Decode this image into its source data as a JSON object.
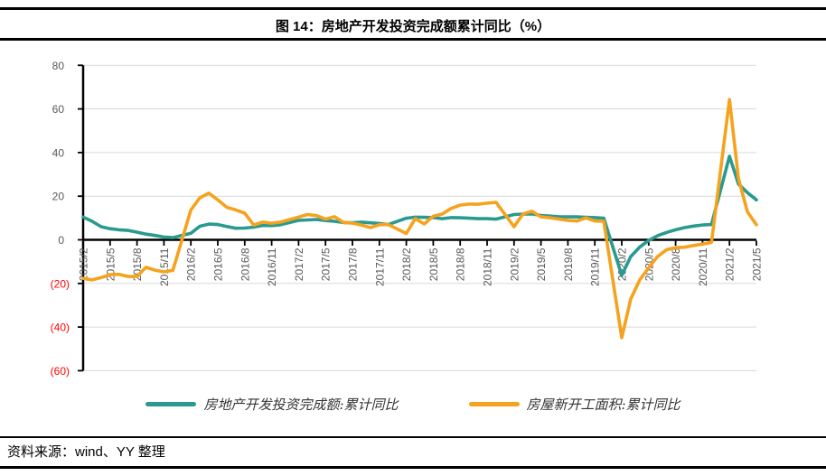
{
  "footer": {
    "source": "资料来源：wind、YY 整理"
  },
  "chart_data": {
    "type": "line",
    "title": "图 14：房地产开发投资完成额累计同比（%）",
    "x_axis": {
      "start": "2015/2",
      "end": "2021/5",
      "tick_labels": [
        "2015/2",
        "2015/5",
        "2015/8",
        "2015/11",
        "2016/2",
        "2016/5",
        "2016/8",
        "2016/11",
        "2017/2",
        "2017/5",
        "2017/8",
        "2017/11",
        "2018/2",
        "2018/5",
        "2018/8",
        "2018/11",
        "2019/2",
        "2019/5",
        "2019/8",
        "2019/11",
        "2020/2",
        "2020/5",
        "2020/8",
        "2020/11",
        "2021/2",
        "2021/5"
      ],
      "label_rotation_deg": 90,
      "label_color": "#595959"
    },
    "y_axis": {
      "ticks": [
        80,
        60,
        40,
        20,
        0,
        -20,
        -40,
        -60
      ],
      "range": [
        -60,
        80
      ],
      "label_color": "#595959",
      "negative_label_color": "#FF0000",
      "negative_format": "(n)"
    },
    "grid": {
      "horizontal": true,
      "color": "#D9D9D9"
    },
    "axis_color": "#000000",
    "legend_position": "bottom",
    "series": [
      {
        "name": "房地产开发投资完成额:累计同比",
        "color": "#2A9A90",
        "points": [
          [
            "2015/2",
            10.4
          ],
          [
            "2015/3",
            8.5
          ],
          [
            "2015/4",
            6.0
          ],
          [
            "2015/5",
            5.1
          ],
          [
            "2015/6",
            4.6
          ],
          [
            "2015/7",
            4.3
          ],
          [
            "2015/8",
            3.5
          ],
          [
            "2015/9",
            2.6
          ],
          [
            "2015/10",
            2.0
          ],
          [
            "2015/11",
            1.3
          ],
          [
            "2015/12",
            1.0
          ],
          [
            "2016/2",
            3.0
          ],
          [
            "2016/3",
            6.2
          ],
          [
            "2016/4",
            7.2
          ],
          [
            "2016/5",
            7.0
          ],
          [
            "2016/6",
            6.1
          ],
          [
            "2016/7",
            5.3
          ],
          [
            "2016/8",
            5.4
          ],
          [
            "2016/9",
            5.8
          ],
          [
            "2016/10",
            6.6
          ],
          [
            "2016/11",
            6.5
          ],
          [
            "2016/12",
            6.9
          ],
          [
            "2017/2",
            8.9
          ],
          [
            "2017/3",
            9.1
          ],
          [
            "2017/4",
            9.3
          ],
          [
            "2017/5",
            8.8
          ],
          [
            "2017/6",
            8.5
          ],
          [
            "2017/7",
            7.9
          ],
          [
            "2017/8",
            7.8
          ],
          [
            "2017/9",
            8.1
          ],
          [
            "2017/10",
            7.8
          ],
          [
            "2017/11",
            7.5
          ],
          [
            "2017/12",
            7.0
          ],
          [
            "2018/2",
            9.9
          ],
          [
            "2018/3",
            10.4
          ],
          [
            "2018/4",
            10.3
          ],
          [
            "2018/5",
            10.2
          ],
          [
            "2018/6",
            9.7
          ],
          [
            "2018/7",
            10.2
          ],
          [
            "2018/8",
            10.1
          ],
          [
            "2018/9",
            9.9
          ],
          [
            "2018/10",
            9.7
          ],
          [
            "2018/11",
            9.7
          ],
          [
            "2018/12",
            9.5
          ],
          [
            "2019/2",
            11.6
          ],
          [
            "2019/3",
            11.8
          ],
          [
            "2019/4",
            11.9
          ],
          [
            "2019/5",
            11.2
          ],
          [
            "2019/6",
            10.9
          ],
          [
            "2019/7",
            10.6
          ],
          [
            "2019/8",
            10.5
          ],
          [
            "2019/9",
            10.5
          ],
          [
            "2019/10",
            10.3
          ],
          [
            "2019/11",
            10.2
          ],
          [
            "2019/12",
            9.9
          ],
          [
            "2020/2",
            -16.3
          ],
          [
            "2020/3",
            -7.7
          ],
          [
            "2020/4",
            -3.3
          ],
          [
            "2020/5",
            -0.3
          ],
          [
            "2020/6",
            1.9
          ],
          [
            "2020/7",
            3.4
          ],
          [
            "2020/8",
            4.6
          ],
          [
            "2020/9",
            5.6
          ],
          [
            "2020/10",
            6.3
          ],
          [
            "2020/11",
            6.8
          ],
          [
            "2020/12",
            7.0
          ],
          [
            "2021/2",
            38.3
          ],
          [
            "2021/3",
            25.6
          ],
          [
            "2021/4",
            21.6
          ],
          [
            "2021/5",
            18.3
          ]
        ]
      },
      {
        "name": "房屋新开工面积:累计同比",
        "color": "#F5A31E",
        "points": [
          [
            "2015/2",
            -17.7
          ],
          [
            "2015/3",
            -18.4
          ],
          [
            "2015/4",
            -17.3
          ],
          [
            "2015/5",
            -16.0
          ],
          [
            "2015/6",
            -15.8
          ],
          [
            "2015/7",
            -16.8
          ],
          [
            "2015/8",
            -16.8
          ],
          [
            "2015/9",
            -12.6
          ],
          [
            "2015/10",
            -13.9
          ],
          [
            "2015/11",
            -14.7
          ],
          [
            "2015/12",
            -14.0
          ],
          [
            "2016/2",
            13.7
          ],
          [
            "2016/3",
            19.2
          ],
          [
            "2016/4",
            21.4
          ],
          [
            "2016/5",
            18.3
          ],
          [
            "2016/6",
            14.9
          ],
          [
            "2016/7",
            13.7
          ],
          [
            "2016/8",
            12.2
          ],
          [
            "2016/9",
            6.8
          ],
          [
            "2016/10",
            8.1
          ],
          [
            "2016/11",
            7.6
          ],
          [
            "2016/12",
            8.1
          ],
          [
            "2017/2",
            10.4
          ],
          [
            "2017/3",
            11.6
          ],
          [
            "2017/4",
            11.1
          ],
          [
            "2017/5",
            9.5
          ],
          [
            "2017/6",
            10.6
          ],
          [
            "2017/7",
            8.0
          ],
          [
            "2017/8",
            7.6
          ],
          [
            "2017/9",
            6.8
          ],
          [
            "2017/10",
            5.6
          ],
          [
            "2017/11",
            6.9
          ],
          [
            "2017/12",
            7.0
          ],
          [
            "2018/2",
            2.9
          ],
          [
            "2018/3",
            9.7
          ],
          [
            "2018/4",
            7.3
          ],
          [
            "2018/5",
            10.8
          ],
          [
            "2018/6",
            11.8
          ],
          [
            "2018/7",
            14.4
          ],
          [
            "2018/8",
            15.9
          ],
          [
            "2018/9",
            16.4
          ],
          [
            "2018/10",
            16.3
          ],
          [
            "2018/11",
            16.8
          ],
          [
            "2018/12",
            17.2
          ],
          [
            "2019/2",
            6.0
          ],
          [
            "2019/3",
            11.9
          ],
          [
            "2019/4",
            13.1
          ],
          [
            "2019/5",
            10.5
          ],
          [
            "2019/6",
            10.1
          ],
          [
            "2019/7",
            9.5
          ],
          [
            "2019/8",
            8.9
          ],
          [
            "2019/9",
            8.6
          ],
          [
            "2019/10",
            10.0
          ],
          [
            "2019/11",
            8.6
          ],
          [
            "2019/12",
            8.5
          ],
          [
            "2020/2",
            -44.9
          ],
          [
            "2020/3",
            -27.2
          ],
          [
            "2020/4",
            -18.4
          ],
          [
            "2020/5",
            -12.8
          ],
          [
            "2020/6",
            -7.6
          ],
          [
            "2020/7",
            -4.5
          ],
          [
            "2020/8",
            -3.6
          ],
          [
            "2020/9",
            -3.4
          ],
          [
            "2020/10",
            -2.6
          ],
          [
            "2020/11",
            -2.0
          ],
          [
            "2020/12",
            -1.2
          ],
          [
            "2021/2",
            64.3
          ],
          [
            "2021/3",
            28.2
          ],
          [
            "2021/4",
            12.8
          ],
          [
            "2021/5",
            6.9
          ]
        ]
      }
    ]
  }
}
